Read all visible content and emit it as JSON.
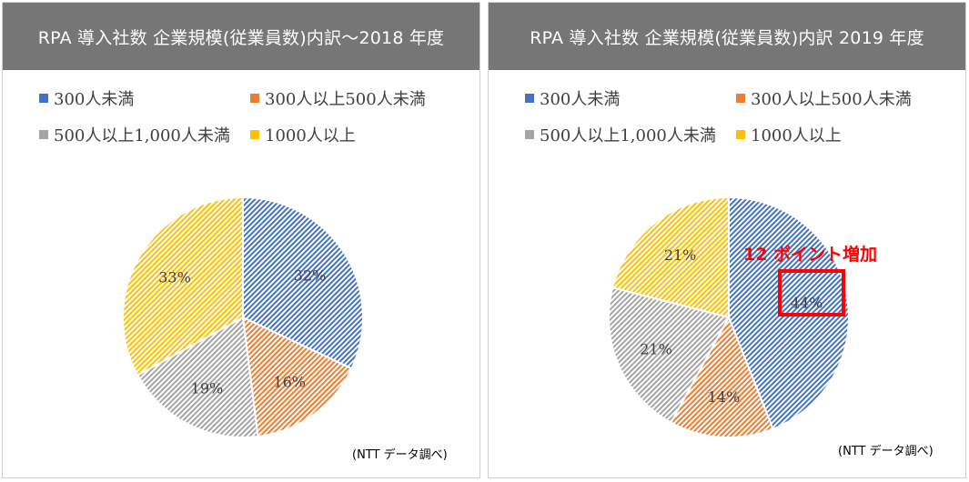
{
  "colors": {
    "header_bg": "#767676",
    "slice_300_under": "#4472C4",
    "slice_300_500": "#ED7D31",
    "slice_500_1000": "#A5A5A5",
    "slice_1000_plus": "#FFC000",
    "callout": "#FF0000"
  },
  "legend": [
    {
      "label": "300人未満",
      "color": "#4472C4"
    },
    {
      "label": "300人以上500人未満",
      "color": "#ED7D31"
    },
    {
      "label": "500人以上1,000人未満",
      "color": "#A5A5A5"
    },
    {
      "label": "1000人以上",
      "color": "#FFC000"
    }
  ],
  "source_note": "(NTT データ調べ)",
  "callout": {
    "text": "12 ポイント増加",
    "target": "300人未満"
  },
  "chart_data": [
    {
      "type": "pie",
      "title": "RPA 導入社数  企業規模(従業員数)内訳～2018 年度",
      "categories": [
        "300人未満",
        "300人以上500人未満",
        "500人以上1,000人未満",
        "1000人以上"
      ],
      "values": [
        32,
        16,
        19,
        33
      ],
      "labels": [
        "32%",
        "16%",
        "19%",
        "33%"
      ],
      "legend_position": "top"
    },
    {
      "type": "pie",
      "title": "RPA 導入社数  企業規模(従業員数)内訳  2019 年度",
      "categories": [
        "300人未満",
        "300人以上500人未満",
        "500人以上1,000人未満",
        "1000人以上"
      ],
      "values": [
        44,
        14,
        21,
        21
      ],
      "labels": [
        "44%",
        "14%",
        "21%",
        "21%"
      ],
      "legend_position": "top"
    }
  ]
}
